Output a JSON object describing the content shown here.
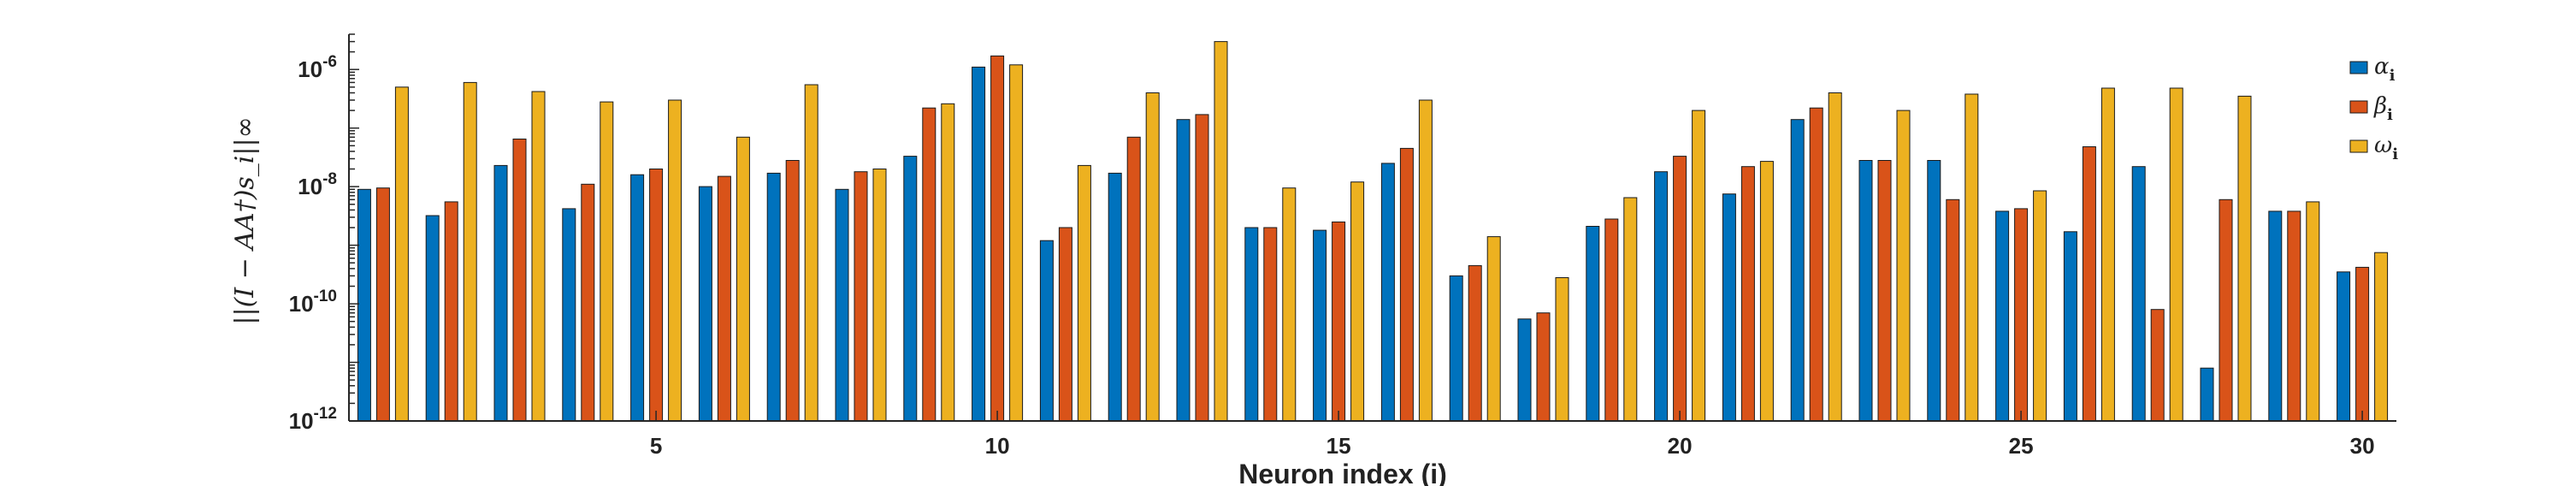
{
  "chart_data": {
    "type": "bar",
    "xlabel": "Neuron index (i)",
    "ylabel": "||(I − AA†)s_i||∞",
    "yscale": "log",
    "ylim": [
      1e-12,
      4e-06
    ],
    "xlim": [
      0.5,
      30.5
    ],
    "xticks": [
      5,
      10,
      15,
      20,
      25,
      30
    ],
    "yticks": [
      1e-12,
      1e-10,
      1e-08,
      1e-06
    ],
    "ytick_labels": [
      {
        "base": "10",
        "exp": "-12"
      },
      {
        "base": "10",
        "exp": "-10"
      },
      {
        "base": "10",
        "exp": "-8"
      },
      {
        "base": "10",
        "exp": "-6"
      }
    ],
    "legend_position": "top-right",
    "categories": [
      1,
      2,
      3,
      4,
      5,
      6,
      7,
      8,
      9,
      10,
      11,
      12,
      13,
      14,
      15,
      16,
      17,
      18,
      19,
      20,
      21,
      22,
      23,
      24,
      25,
      26,
      27,
      28,
      29,
      30
    ],
    "series": [
      {
        "name": "α",
        "sub": "i",
        "color": "#0072BD",
        "values": [
          9e-09,
          3.2e-09,
          2.3e-08,
          4.2e-09,
          1.6e-08,
          1e-08,
          1.7e-08,
          9e-09,
          3.3e-08,
          1.1e-06,
          1.2e-09,
          1.7e-08,
          1.4e-07,
          2e-09,
          1.8e-09,
          2.5e-08,
          3e-10,
          5.5e-11,
          2.1e-09,
          1.8e-08,
          7.5e-09,
          1.4e-07,
          2.8e-08,
          2.8e-08,
          3.8e-09,
          1.7e-09,
          2.2e-08,
          8e-12,
          3.8e-09,
          3.5e-10
        ]
      },
      {
        "name": "β",
        "sub": "i",
        "color": "#D95319",
        "values": [
          9.5e-09,
          5.5e-09,
          6.5e-08,
          1.1e-08,
          2e-08,
          1.5e-08,
          2.8e-08,
          1.8e-08,
          2.2e-07,
          1.7e-06,
          2e-09,
          7e-08,
          1.7e-07,
          2e-09,
          2.5e-09,
          4.5e-08,
          4.5e-10,
          7e-11,
          2.8e-09,
          3.3e-08,
          2.2e-08,
          2.2e-07,
          2.8e-08,
          6e-09,
          4.2e-09,
          4.8e-08,
          8e-11,
          6e-09,
          3.8e-09,
          4.2e-10
        ]
      },
      {
        "name": "ω",
        "sub": "i",
        "color": "#EDB120",
        "values": [
          5e-07,
          6e-07,
          4.2e-07,
          2.8e-07,
          3e-07,
          7e-08,
          5.5e-07,
          2e-08,
          2.6e-07,
          1.2e-06,
          2.3e-08,
          4e-07,
          3e-06,
          9.5e-09,
          1.2e-08,
          3e-07,
          1.4e-09,
          2.8e-10,
          6.5e-09,
          2e-07,
          2.7e-08,
          4e-07,
          2e-07,
          3.8e-07,
          8.5e-09,
          4.8e-07,
          4.8e-07,
          3.5e-07,
          5.5e-09,
          7.5e-10
        ]
      }
    ]
  }
}
